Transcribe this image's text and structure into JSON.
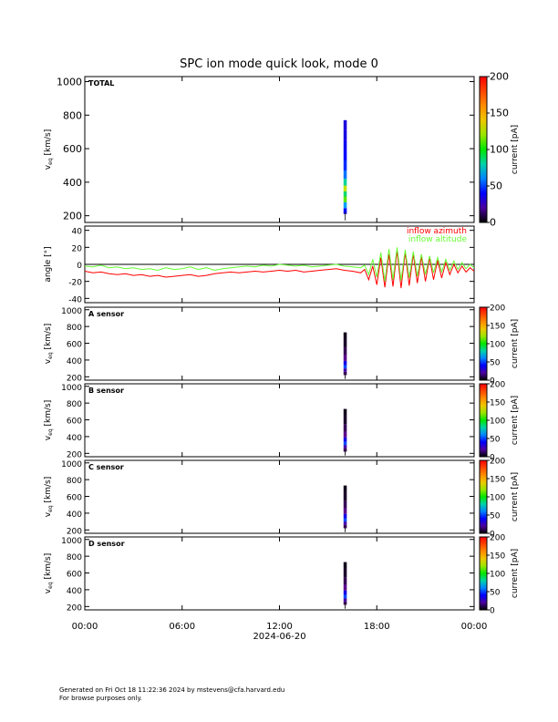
{
  "title": "SPC ion mode quick look, mode 0",
  "x_axis": {
    "ticks": [
      "00:00",
      "06:00",
      "12:00",
      "18:00",
      "00:00"
    ],
    "date_label": "2024-06-20",
    "range_hours": [
      0,
      24
    ]
  },
  "footer": {
    "line1": "Generated on Fri Oct 18 11:22:36 2024 by mstevens@cfa.harvard.edu",
    "line2": "For browse purposes only."
  },
  "colorbar_label": "current [pA]",
  "colors": {
    "azimuth": "#ff0000",
    "altitude": "#66ff33",
    "axis": "#000000"
  },
  "chart_data": [
    {
      "type": "heatmap",
      "panel": "total",
      "tag": "TOTAL",
      "ylabel_main": "v",
      "ylabel_sub": "eq",
      "ylabel_unit": " [km/s]",
      "ylim": [
        160,
        1030
      ],
      "yticks": [
        200,
        400,
        600,
        800,
        1000
      ],
      "colorbar": {
        "label": "current [pA]",
        "range": [
          0,
          200
        ],
        "ticks": [
          0,
          50,
          100,
          150,
          200
        ]
      },
      "data_window_hours": [
        15.95,
        16.15
      ],
      "profile": [
        {
          "v": 230,
          "c": 6
        },
        {
          "v": 260,
          "c": 25
        },
        {
          "v": 300,
          "c": 60
        },
        {
          "v": 330,
          "c": 42
        },
        {
          "v": 360,
          "c": 70
        },
        {
          "v": 400,
          "c": 38
        },
        {
          "v": 440,
          "c": 20
        },
        {
          "v": 500,
          "c": 12
        },
        {
          "v": 560,
          "c": 8
        },
        {
          "v": 620,
          "c": 5
        },
        {
          "v": 680,
          "c": 3
        },
        {
          "v": 740,
          "c": 2
        }
      ]
    },
    {
      "type": "line",
      "panel": "angle",
      "ylabel": "angle [°]",
      "ylim": [
        -45,
        45
      ],
      "yticks": [
        -40,
        -20,
        0,
        20,
        40
      ],
      "series": [
        {
          "name": "inflow azimuth",
          "color": "#ff0000",
          "x": [
            0,
            0.5,
            1,
            1.5,
            2,
            2.5,
            3,
            3.5,
            4,
            4.5,
            5,
            5.5,
            6,
            6.5,
            7,
            7.5,
            8,
            8.5,
            9,
            9.5,
            10,
            10.5,
            11,
            11.5,
            12,
            12.5,
            13,
            13.5,
            14,
            14.5,
            15,
            15.5,
            16,
            16.5,
            17,
            17.25,
            17.5,
            17.75,
            18,
            18.25,
            18.5,
            18.75,
            19,
            19.25,
            19.5,
            19.75,
            20,
            20.25,
            20.5,
            20.75,
            21,
            21.25,
            21.5,
            21.75,
            22,
            22.25,
            22.5,
            22.75,
            23,
            23.25,
            23.5,
            23.75,
            24
          ],
          "y": [
            -8,
            -10,
            -9,
            -11,
            -12,
            -11,
            -13,
            -12,
            -14,
            -13,
            -15,
            -14,
            -13,
            -12,
            -14,
            -13,
            -11,
            -10,
            -9,
            -10,
            -9,
            -8,
            -9,
            -8,
            -7,
            -8,
            -7,
            -9,
            -8,
            -7,
            -6,
            -5,
            -7,
            -8,
            -10,
            -6,
            -18,
            -2,
            -24,
            8,
            -27,
            12,
            -26,
            16,
            -28,
            14,
            -25,
            12,
            -22,
            9,
            -20,
            8,
            -18,
            5,
            -16,
            2,
            -12,
            0,
            -10,
            -2,
            -9,
            -4,
            -8
          ]
        },
        {
          "name": "inflow altitude",
          "color": "#66ff33",
          "x": [
            0,
            0.5,
            1,
            1.5,
            2,
            2.5,
            3,
            3.5,
            4,
            4.5,
            5,
            5.5,
            6,
            6.5,
            7,
            7.5,
            8,
            8.5,
            9,
            9.5,
            10,
            10.5,
            11,
            11.5,
            12,
            12.5,
            13,
            13.5,
            14,
            14.5,
            15,
            15.5,
            16,
            16.5,
            17,
            17.25,
            17.5,
            17.75,
            18,
            18.25,
            18.5,
            18.75,
            19,
            19.25,
            19.5,
            19.75,
            20,
            20.25,
            20.5,
            20.75,
            21,
            21.25,
            21.5,
            21.75,
            22,
            22.25,
            22.5,
            22.75,
            23,
            23.25,
            23.5,
            23.75,
            24
          ],
          "y": [
            -2,
            -3,
            -1,
            -4,
            -3,
            -5,
            -4,
            -6,
            -5,
            -7,
            -4,
            -6,
            -5,
            -3,
            -6,
            -4,
            -7,
            -5,
            -4,
            -3,
            -2,
            -3,
            -1,
            -2,
            0,
            -1,
            -2,
            -1,
            -3,
            -2,
            -1,
            0,
            -2,
            -3,
            -4,
            -1,
            -12,
            6,
            -15,
            14,
            -20,
            18,
            -18,
            20,
            -19,
            17,
            -16,
            15,
            -14,
            12,
            -12,
            10,
            -10,
            8,
            -9,
            6,
            -7,
            4,
            -6,
            2,
            -5,
            0,
            -4
          ]
        }
      ],
      "zero_line": true
    },
    {
      "type": "heatmap",
      "panel": "A",
      "tag": "A sensor",
      "ylabel_main": "v",
      "ylabel_sub": "eq",
      "ylabel_unit": " [km/s]",
      "ylim": [
        160,
        1030
      ],
      "yticks": [
        200,
        400,
        600,
        800,
        1000
      ],
      "colorbar": {
        "label": "current [pA]",
        "range": [
          0,
          200
        ],
        "ticks": [
          0,
          50,
          100,
          150,
          200
        ]
      },
      "data_window_hours": [
        15.95,
        16.15
      ],
      "profile": [
        {
          "v": 240,
          "c": 6
        },
        {
          "v": 280,
          "c": 14
        },
        {
          "v": 320,
          "c": 32
        },
        {
          "v": 360,
          "c": 22
        },
        {
          "v": 420,
          "c": 10
        },
        {
          "v": 500,
          "c": 6
        },
        {
          "v": 600,
          "c": 3
        },
        {
          "v": 700,
          "c": 2
        }
      ]
    },
    {
      "type": "heatmap",
      "panel": "B",
      "tag": "B sensor",
      "ylabel_main": "v",
      "ylabel_sub": "eq",
      "ylabel_unit": " [km/s]",
      "ylim": [
        160,
        1030
      ],
      "yticks": [
        200,
        400,
        600,
        800,
        1000
      ],
      "colorbar": {
        "label": "current [pA]",
        "range": [
          0,
          200
        ],
        "ticks": [
          0,
          50,
          100,
          150,
          200
        ]
      },
      "data_window_hours": [
        15.95,
        16.15
      ],
      "profile": [
        {
          "v": 240,
          "c": 6
        },
        {
          "v": 280,
          "c": 14
        },
        {
          "v": 320,
          "c": 32
        },
        {
          "v": 360,
          "c": 22
        },
        {
          "v": 420,
          "c": 10
        },
        {
          "v": 500,
          "c": 6
        },
        {
          "v": 600,
          "c": 3
        },
        {
          "v": 700,
          "c": 2
        }
      ]
    },
    {
      "type": "heatmap",
      "panel": "C",
      "tag": "C sensor",
      "ylabel_main": "v",
      "ylabel_sub": "eq",
      "ylabel_unit": " [km/s]",
      "ylim": [
        160,
        1030
      ],
      "yticks": [
        200,
        400,
        600,
        800,
        1000
      ],
      "colorbar": {
        "label": "current [pA]",
        "range": [
          0,
          200
        ],
        "ticks": [
          0,
          50,
          100,
          150,
          200
        ]
      },
      "data_window_hours": [
        15.95,
        16.15
      ],
      "profile": [
        {
          "v": 240,
          "c": 6
        },
        {
          "v": 280,
          "c": 14
        },
        {
          "v": 320,
          "c": 32
        },
        {
          "v": 360,
          "c": 22
        },
        {
          "v": 420,
          "c": 10
        },
        {
          "v": 500,
          "c": 6
        },
        {
          "v": 600,
          "c": 3
        },
        {
          "v": 700,
          "c": 2
        }
      ]
    },
    {
      "type": "heatmap",
      "panel": "D",
      "tag": "D sensor",
      "ylabel_main": "v",
      "ylabel_sub": "eq",
      "ylabel_unit": " [km/s]",
      "ylim": [
        160,
        1030
      ],
      "yticks": [
        200,
        400,
        600,
        800,
        1000
      ],
      "colorbar": {
        "label": "current [pA]",
        "range": [
          0,
          200
        ],
        "ticks": [
          0,
          50,
          100,
          150,
          200
        ]
      },
      "data_window_hours": [
        15.95,
        16.15
      ],
      "profile": [
        {
          "v": 240,
          "c": 6
        },
        {
          "v": 280,
          "c": 14
        },
        {
          "v": 320,
          "c": 32
        },
        {
          "v": 360,
          "c": 22
        },
        {
          "v": 420,
          "c": 10
        },
        {
          "v": 500,
          "c": 6
        },
        {
          "v": 600,
          "c": 3
        },
        {
          "v": 700,
          "c": 2
        }
      ]
    }
  ]
}
